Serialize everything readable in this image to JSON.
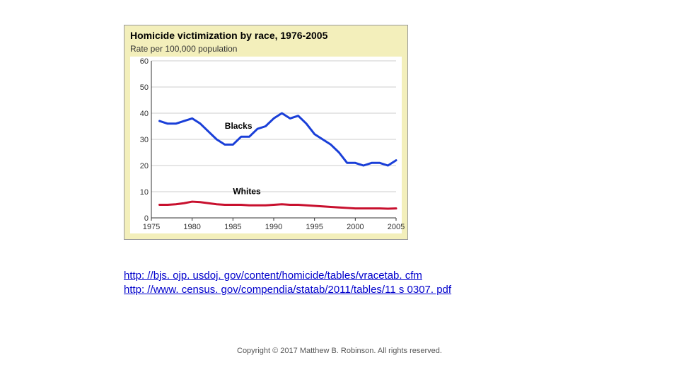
{
  "chart": {
    "type": "line",
    "title": "Homicide victimization by race, 1976-2005",
    "subtitle": "Rate per 100,000 population",
    "background_color": "#f3efbb",
    "plot_background": "#ffffff",
    "border_color": "#999999",
    "grid_color": "#cccccc",
    "axis_color": "#333333",
    "tick_font_size": 11,
    "title_font_size": 14,
    "label_font_size": 12,
    "x": {
      "min": 1975,
      "max": 2005,
      "ticks": [
        1975,
        1980,
        1985,
        1990,
        1995,
        2000,
        2005
      ]
    },
    "y": {
      "min": 0,
      "max": 60,
      "ticks": [
        0,
        10,
        20,
        30,
        40,
        50,
        60
      ]
    },
    "series": [
      {
        "name": "Blacks",
        "color": "#1a3fd8",
        "line_width": 3,
        "label_x": 1984,
        "label_y": 34,
        "data": [
          [
            1976,
            37
          ],
          [
            1977,
            36
          ],
          [
            1978,
            36
          ],
          [
            1979,
            37
          ],
          [
            1980,
            38
          ],
          [
            1981,
            36
          ],
          [
            1982,
            33
          ],
          [
            1983,
            30
          ],
          [
            1984,
            28
          ],
          [
            1985,
            28
          ],
          [
            1986,
            31
          ],
          [
            1987,
            31
          ],
          [
            1988,
            34
          ],
          [
            1989,
            35
          ],
          [
            1990,
            38
          ],
          [
            1991,
            40
          ],
          [
            1992,
            38
          ],
          [
            1993,
            39
          ],
          [
            1994,
            36
          ],
          [
            1995,
            32
          ],
          [
            1996,
            30
          ],
          [
            1997,
            28
          ],
          [
            1998,
            25
          ],
          [
            1999,
            21
          ],
          [
            2000,
            21
          ],
          [
            2001,
            20
          ],
          [
            2002,
            21
          ],
          [
            2003,
            21
          ],
          [
            2004,
            20
          ],
          [
            2005,
            22
          ]
        ]
      },
      {
        "name": "Whites",
        "color": "#c8102e",
        "line_width": 3,
        "label_x": 1985,
        "label_y": 9,
        "data": [
          [
            1976,
            5
          ],
          [
            1977,
            5
          ],
          [
            1978,
            5.2
          ],
          [
            1979,
            5.6
          ],
          [
            1980,
            6.2
          ],
          [
            1981,
            6
          ],
          [
            1982,
            5.6
          ],
          [
            1983,
            5.2
          ],
          [
            1984,
            5
          ],
          [
            1985,
            5
          ],
          [
            1986,
            5
          ],
          [
            1987,
            4.8
          ],
          [
            1988,
            4.8
          ],
          [
            1989,
            4.8
          ],
          [
            1990,
            5
          ],
          [
            1991,
            5.2
          ],
          [
            1992,
            5
          ],
          [
            1993,
            5
          ],
          [
            1994,
            4.8
          ],
          [
            1995,
            4.6
          ],
          [
            1996,
            4.4
          ],
          [
            1997,
            4.2
          ],
          [
            1998,
            4
          ],
          [
            1999,
            3.8
          ],
          [
            2000,
            3.6
          ],
          [
            2001,
            3.6
          ],
          [
            2002,
            3.6
          ],
          [
            2003,
            3.6
          ],
          [
            2004,
            3.5
          ],
          [
            2005,
            3.6
          ]
        ]
      }
    ]
  },
  "links": {
    "url1": "http: //bjs. ojp. usdoj. gov/content/homicide/tables/vracetab. cfm",
    "url2": "http: //www. census. gov/compendia/statab/2011/tables/11 s 0307. pdf"
  },
  "copyright": "Copyright © 2017 Matthew B. Robinson. All rights reserved."
}
